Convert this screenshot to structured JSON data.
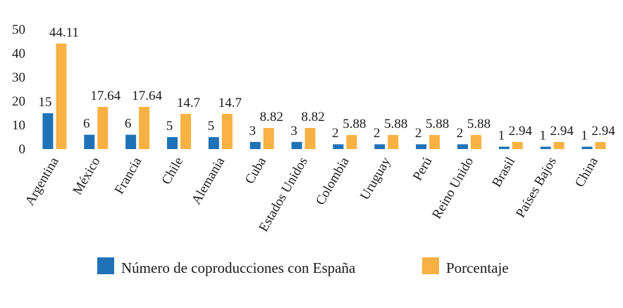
{
  "chart_data": {
    "type": "bar",
    "title": "",
    "xlabel": "",
    "ylabel": "",
    "ylim": [
      0,
      50
    ],
    "yticks": [
      0,
      10,
      20,
      30,
      40,
      50
    ],
    "ytick_labels": [
      "0",
      "10",
      "20",
      "30",
      "40",
      "50"
    ],
    "grid": false,
    "legend_position": "bottom",
    "categories": [
      "Argentina",
      "México",
      "Francia",
      "Chile",
      "Alemania",
      "Cuba",
      "Estados Unidos",
      "Colombia",
      "Uruguay",
      "Perú",
      "Reino Unido",
      "Brasil",
      "Países Bajos",
      "China"
    ],
    "series": [
      {
        "name": "Número de coproducciones con España",
        "color": "#1f72b8",
        "values": [
          15,
          6,
          6,
          5,
          5,
          3,
          3,
          2,
          2,
          2,
          2,
          1,
          1,
          1
        ],
        "labels": [
          "15",
          "6",
          "6",
          "5",
          "5",
          "3",
          "3",
          "2",
          "2",
          "2",
          "2",
          "1",
          "1",
          "1"
        ]
      },
      {
        "name": "Porcentaje",
        "color": "#f8b142",
        "values": [
          44.11,
          17.64,
          17.64,
          14.7,
          14.7,
          8.82,
          8.82,
          5.88,
          5.88,
          5.88,
          5.88,
          2.94,
          2.94,
          2.94
        ],
        "labels": [
          "44.11",
          "17.64",
          "17.64",
          "14.7",
          "14.7",
          "8.82",
          "8.82",
          "5.88",
          "5.88",
          "5.88",
          "5.88",
          "2.94",
          "2.94",
          "2.94"
        ]
      }
    ]
  }
}
